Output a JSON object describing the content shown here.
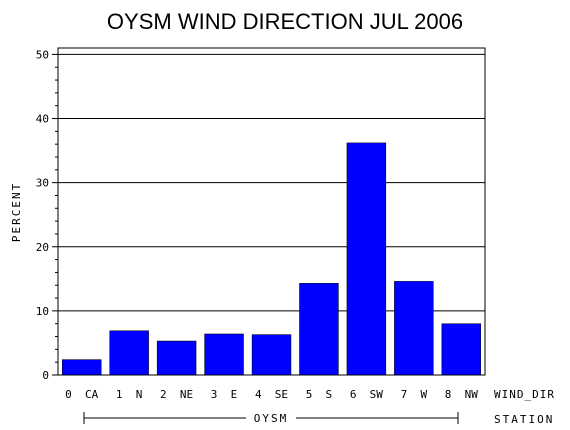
{
  "chart_data": {
    "type": "bar",
    "title": "OYSM WIND DIRECTION JUL 2006",
    "ylabel": "PERCENT",
    "xlabel": "WIND_DIR",
    "group_axis_label": "STATION",
    "group_label": "OYSM",
    "categories": [
      "0 CA",
      "1 N",
      "2 NE",
      "3 E",
      "4 SE",
      "5 S",
      "6 SW",
      "7 W",
      "8 NW"
    ],
    "values": [
      2.4,
      6.9,
      5.3,
      6.4,
      6.3,
      14.3,
      36.2,
      14.6,
      8.0
    ],
    "ylim": [
      0,
      51
    ],
    "yticks": [
      0,
      10,
      20,
      30,
      40,
      50
    ],
    "grid": true,
    "bar_color": "#0000ff"
  }
}
